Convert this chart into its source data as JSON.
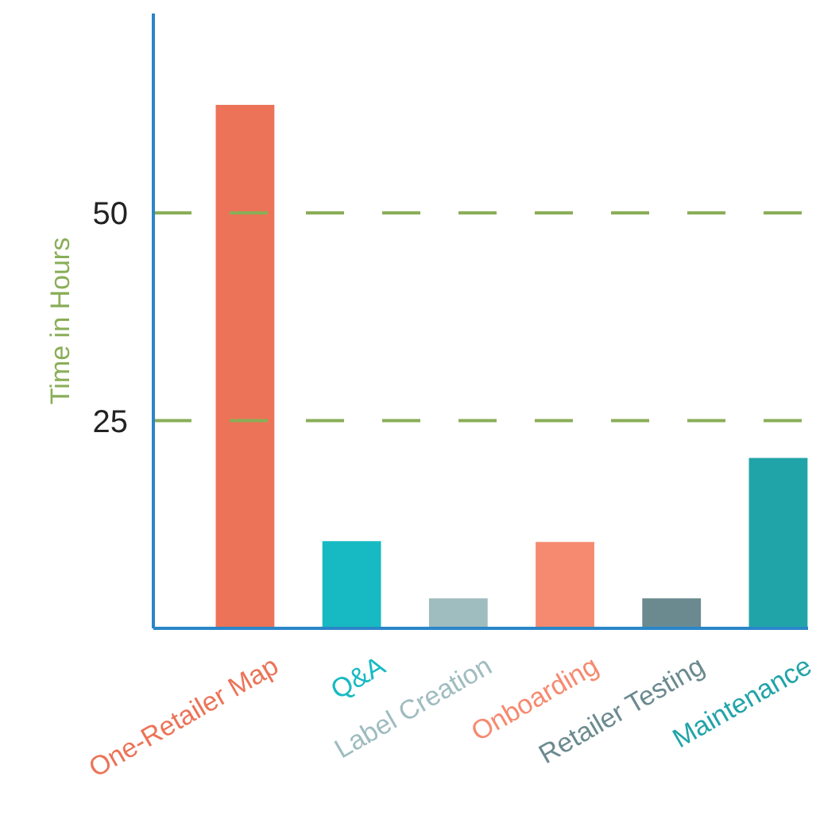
{
  "chart_data": {
    "type": "bar",
    "ylabel": "Time in Hours",
    "categories": [
      "One-Retailer Map",
      "Q&A",
      "Label Creation",
      "Onboarding",
      "Retailer Testing",
      "Maintenance"
    ],
    "values": [
      63,
      10.5,
      3.6,
      10.4,
      3.6,
      20.5
    ],
    "colors": [
      "#ec7357",
      "#17bac2",
      "#9fbcbf",
      "#f58a70",
      "#6b8a8f",
      "#21a4a8"
    ],
    "ylim": [
      0,
      74
    ],
    "yticks": [
      25,
      50
    ],
    "grid": "y"
  }
}
